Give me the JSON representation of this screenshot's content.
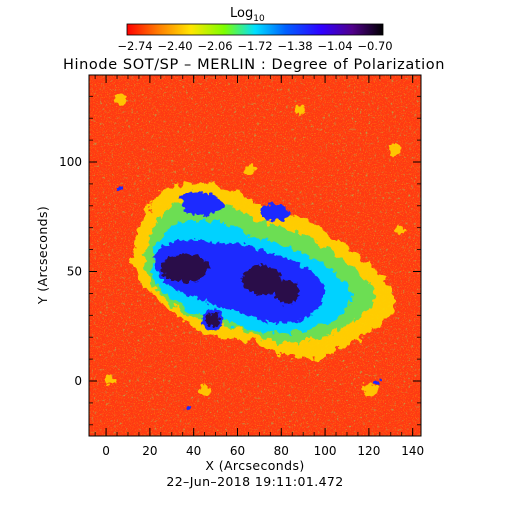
{
  "colorbar": {
    "label_main": "Log",
    "label_sub": "10",
    "ticks": [
      "−2.74",
      "−2.40",
      "−2.06",
      "−1.72",
      "−1.38",
      "−1.04",
      "−0.70"
    ]
  },
  "title": "Hinode SOT/SP – MERLIN : Degree of Polarization",
  "x_axis": {
    "label": "X (Arcseconds)",
    "ticks": [
      "0",
      "20",
      "40",
      "60",
      "80",
      "100",
      "120",
      "140"
    ]
  },
  "y_axis": {
    "label": "Y (Arcseconds)",
    "ticks": [
      "0",
      "50",
      "100"
    ]
  },
  "timestamp": "22–Jun–2018 19:11:01.472",
  "colors": {
    "quiet_sun": "#ff3a12",
    "network": "#ffd400",
    "penumbra_edge": "#00d2ff",
    "penumbra": "#1e2cff",
    "umbra": "#2a0a4a"
  }
}
